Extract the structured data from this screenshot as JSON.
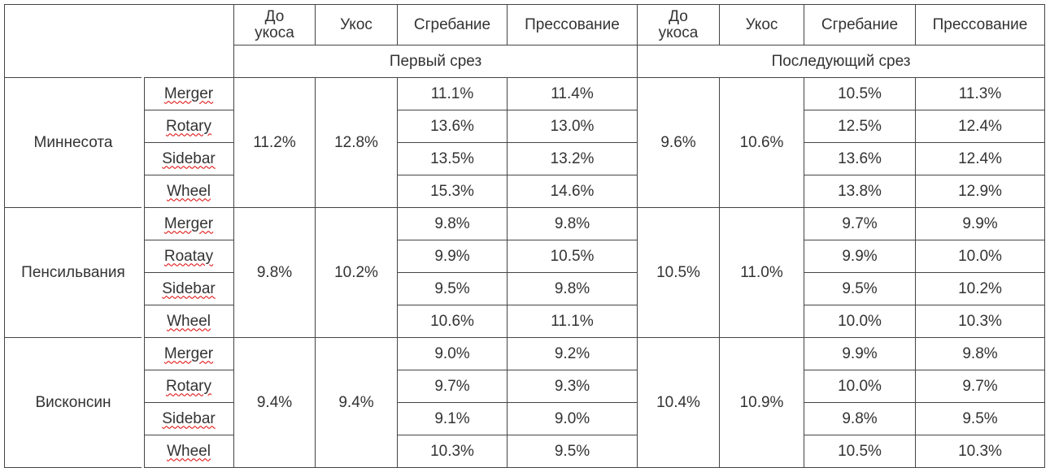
{
  "header": {
    "columns": [
      "До укоса",
      "Укос",
      "Сгребание",
      "Прессование",
      "До укоса",
      "Укос",
      "Сгребание",
      "Прессование"
    ],
    "groups": [
      "Первый срез",
      "Последующий срез"
    ]
  },
  "regions": [
    {
      "name": "Миннесота",
      "methods": [
        "Merger",
        "Rotary",
        "Sidebar",
        "Wheel"
      ],
      "first": {
        "before": "11.2%",
        "cut": "12.8%",
        "rake": [
          "11.1%",
          "13.6%",
          "13.5%",
          "15.3%"
        ],
        "bale": [
          "11.4%",
          "13.0%",
          "13.2%",
          "14.6%"
        ]
      },
      "later": {
        "before": "9.6%",
        "cut": "10.6%",
        "rake": [
          "10.5%",
          "12.5%",
          "13.6%",
          "13.8%"
        ],
        "bale": [
          "11.3%",
          "12.4%",
          "12.4%",
          "12.9%"
        ]
      }
    },
    {
      "name": "Пенсильвания",
      "methods": [
        "Merger",
        "Roatay",
        "Sidebar",
        "Wheel"
      ],
      "first": {
        "before": "9.8%",
        "cut": "10.2%",
        "rake": [
          "9.8%",
          "9.9%",
          "9.5%",
          "10.6%"
        ],
        "bale": [
          "9.8%",
          "10.5%",
          "9.8%",
          "11.1%"
        ]
      },
      "later": {
        "before": "10.5%",
        "cut": "11.0%",
        "rake": [
          "9.7%",
          "9.9%",
          "9.5%",
          "10.0%"
        ],
        "bale": [
          "9.9%",
          "10.0%",
          "10.2%",
          "10.3%"
        ]
      }
    },
    {
      "name": "Висконсин",
      "methods": [
        "Merger",
        "Rotary",
        "Sidebar",
        "Wheel"
      ],
      "first": {
        "before": "9.4%",
        "cut": "9.4%",
        "rake": [
          "9.0%",
          "9.7%",
          "9.1%",
          "10.3%"
        ],
        "bale": [
          "9.2%",
          "9.3%",
          "9.0%",
          "9.5%"
        ]
      },
      "later": {
        "before": "10.4%",
        "cut": "10.9%",
        "rake": [
          "9.9%",
          "10.0%",
          "9.8%",
          "10.5%"
        ],
        "bale": [
          "9.8%",
          "9.7%",
          "9.5%",
          "10.3%"
        ]
      }
    }
  ]
}
